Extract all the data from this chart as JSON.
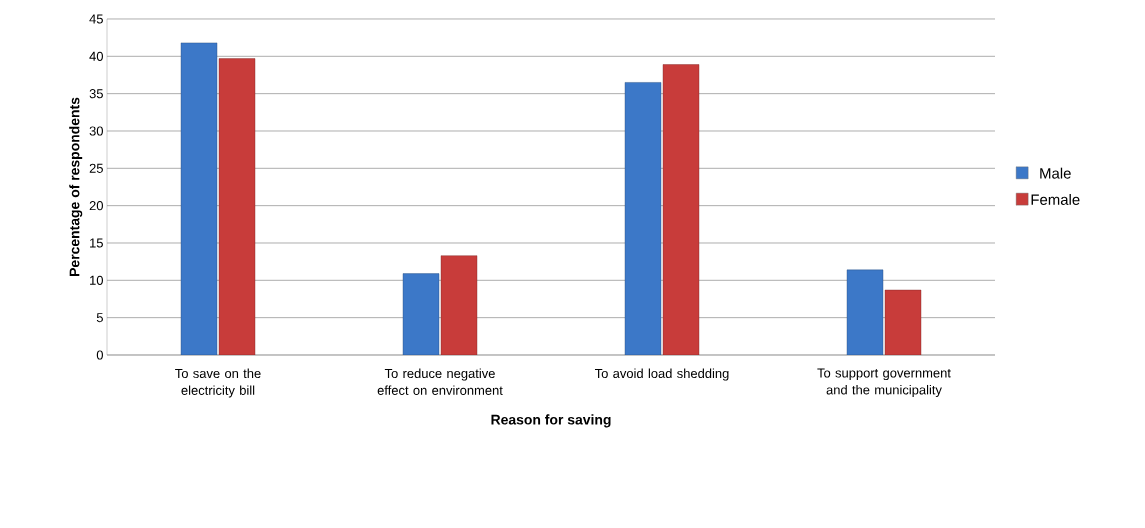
{
  "chart_data": {
    "type": "bar",
    "xlabel": "Reason for saving",
    "ylabel": "Percentage of respondents",
    "categories": [
      "To save on the electricity bill",
      "To reduce negative effect on environment",
      "To avoid load shedding",
      "To support government and the municipality"
    ],
    "series": [
      {
        "name": "Male",
        "color": "#3c78c8",
        "values": [
          41.8,
          10.9,
          36.5,
          11.4
        ]
      },
      {
        "name": "Female",
        "color": "#c83c3a",
        "values": [
          39.7,
          13.3,
          38.9,
          8.7
        ]
      }
    ],
    "ylim": [
      0,
      45
    ],
    "yticks": [
      0,
      5,
      10,
      15,
      20,
      25,
      30,
      35,
      40,
      45
    ],
    "grid": "y",
    "legend": "right"
  }
}
